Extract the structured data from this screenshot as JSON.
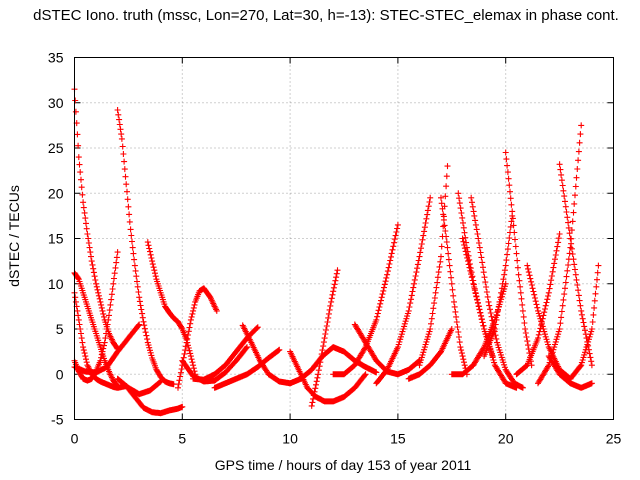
{
  "chart_data": {
    "type": "scatter",
    "title": "dSTEC Iono. truth (mssc, Lon=270, Lat=30, h=-13): STEC-STEC_elemax in phase cont.",
    "xlabel": "GPS time / hours of day 153 of year 2011",
    "ylabel": "dSTEC  / TECUs",
    "xlim": [
      0,
      25
    ],
    "ylim": [
      -5,
      35
    ],
    "xticks": [
      0,
      5,
      10,
      15,
      20,
      25
    ],
    "yticks": [
      -5,
      0,
      5,
      10,
      15,
      20,
      25,
      30,
      35
    ],
    "grid": true,
    "marker": "+",
    "color": "#ff0000",
    "series": [
      {
        "x": [
          0.0,
          0.2,
          0.4,
          0.6,
          0.8,
          1.0,
          1.2,
          1.4,
          1.6,
          1.8,
          2.0
        ],
        "y": [
          31.5,
          24,
          19,
          15.5,
          12.5,
          10,
          8,
          6,
          4.5,
          3.5,
          2.8
        ]
      },
      {
        "x": [
          0.0,
          0.2,
          0.4,
          0.6,
          0.8,
          1.0,
          1.2,
          1.4,
          1.6,
          1.8,
          2.0
        ],
        "y": [
          11.2,
          10.5,
          9,
          7.5,
          6,
          4.5,
          3,
          1.5,
          0.3,
          -0.7,
          -1.3
        ]
      },
      {
        "x": [
          0.0,
          0.2,
          0.4,
          0.6,
          0.8,
          1.0,
          1.2,
          1.4,
          1.6,
          1.8,
          2.0,
          2.2,
          2.4
        ],
        "y": [
          9,
          6,
          3,
          1,
          0,
          -0.5,
          -0.8,
          -1,
          -1.2,
          -1.4,
          -1.5,
          -1.4,
          -1.3
        ]
      },
      {
        "x": [
          0.0,
          0.2,
          0.4,
          0.6,
          0.8,
          1.0,
          1.2,
          1.4,
          1.6,
          1.8,
          2.0
        ],
        "y": [
          1.5,
          0.3,
          -0.5,
          -0.7,
          -0.5,
          0.3,
          1.5,
          3.5,
          6.5,
          10,
          13.5
        ]
      },
      {
        "x": [
          0.0,
          0.5,
          1.0,
          1.5,
          2.0,
          2.5,
          3.0
        ],
        "y": [
          0.8,
          0.3,
          0.2,
          0.8,
          2.5,
          4,
          5.5
        ]
      },
      {
        "x": [
          2.0,
          2.2,
          2.4,
          2.6,
          2.8,
          3.0,
          3.2,
          3.4,
          3.6,
          3.8,
          4.0,
          4.2,
          4.4,
          4.6
        ],
        "y": [
          29.2,
          26,
          21,
          16,
          12,
          8.5,
          5.8,
          3.5,
          1.8,
          0.5,
          -0.3,
          -0.8,
          -1,
          -1.1
        ]
      },
      {
        "x": [
          2.0,
          2.5,
          3.0,
          3.5,
          4.0
        ],
        "y": [
          -0.5,
          -1.5,
          -2.2,
          -1.8,
          -0.8
        ]
      },
      {
        "x": [
          2.4,
          2.8,
          3.2,
          3.6,
          4.0,
          4.4,
          4.8,
          5.0
        ],
        "y": [
          -1.3,
          -2.5,
          -3.7,
          -4.2,
          -4.3,
          -4.0,
          -3.8,
          -3.6
        ]
      },
      {
        "x": [
          3.4,
          3.6,
          3.8,
          4.0,
          4.2,
          4.4,
          4.6,
          4.8,
          5.0,
          5.2,
          5.4,
          5.6
        ],
        "y": [
          14.6,
          12.5,
          10.5,
          9,
          7.5,
          6.8,
          6.2,
          5.8,
          5,
          3.8,
          2,
          0
        ]
      },
      {
        "x": [
          4.8,
          5.0,
          5.2,
          5.4,
          5.6,
          5.8,
          6.0,
          6.3,
          6.6
        ],
        "y": [
          -1.5,
          1,
          3.5,
          6,
          8,
          9.2,
          9.5,
          8.5,
          7
        ]
      },
      {
        "x": [
          5.0,
          5.5,
          6.0,
          6.5,
          7.0,
          7.5,
          8.0
        ],
        "y": [
          1.5,
          -0.2,
          -0.8,
          -0.7,
          0.2,
          1.5,
          3
        ]
      },
      {
        "x": [
          5.5,
          6.0,
          6.5,
          7.0,
          7.5,
          8.0,
          8.5
        ],
        "y": [
          -0.5,
          -0.6,
          0,
          1,
          2.5,
          4,
          5.2
        ]
      },
      {
        "x": [
          6.5,
          7.0,
          7.5,
          8.0,
          8.5,
          9.0,
          9.5
        ],
        "y": [
          -1.5,
          -1,
          -0.5,
          0,
          0.8,
          1.8,
          2.7
        ]
      },
      {
        "x": [
          7.8,
          8.2,
          8.6,
          9.0,
          9.5,
          10.0
        ],
        "y": [
          5.4,
          3.5,
          1.5,
          0,
          -0.8,
          -1
        ]
      },
      {
        "x": [
          10.0,
          10.4,
          10.8,
          11.2,
          11.6,
          12.0,
          12.5,
          13.0,
          13.5
        ],
        "y": [
          2.5,
          0.5,
          -1.5,
          -2.5,
          -3,
          -3,
          -2.5,
          -1.5,
          0
        ]
      },
      {
        "x": [
          10.0,
          10.5,
          11.0,
          11.5,
          12.0,
          12.5,
          13.0,
          13.5,
          14.0
        ],
        "y": [
          -1,
          -0.5,
          0.5,
          2,
          3,
          2.5,
          1.5,
          0.8,
          0.2
        ]
      },
      {
        "x": [
          11.0,
          11.3,
          11.6,
          11.9,
          12.2
        ],
        "y": [
          -3.5,
          0,
          4,
          8,
          11.5
        ]
      },
      {
        "x": [
          12.0,
          12.5,
          13.0,
          13.5,
          14.0,
          14.5,
          15.0
        ],
        "y": [
          0,
          0,
          1,
          3,
          6,
          11,
          16.5
        ]
      },
      {
        "x": [
          13.0,
          13.5,
          14.0,
          14.5,
          15.0,
          15.5,
          16.0
        ],
        "y": [
          5.5,
          3.5,
          1.5,
          0.3,
          0,
          0.5,
          1.5
        ]
      },
      {
        "x": [
          14.0,
          14.5,
          15.0,
          15.5,
          16.0,
          16.5
        ],
        "y": [
          -1,
          0.5,
          3,
          7,
          13,
          19.5
        ]
      },
      {
        "x": [
          15.5,
          16.0,
          16.5,
          17.0,
          17.5
        ],
        "y": [
          -0.5,
          0,
          1,
          2.5,
          5
        ]
      },
      {
        "x": [
          16.0,
          16.5,
          17.0,
          17.3
        ],
        "y": [
          1,
          5,
          13,
          23
        ]
      },
      {
        "x": [
          17.0,
          17.3,
          17.6,
          17.9,
          18.2
        ],
        "y": [
          19.5,
          14,
          8,
          3,
          0
        ]
      },
      {
        "x": [
          17.5,
          18.0,
          18.5,
          19.0,
          19.5,
          20.0
        ],
        "y": [
          0,
          0,
          1,
          3,
          6,
          10
        ]
      },
      {
        "x": [
          18.0,
          18.5,
          19.0,
          19.5,
          20.0,
          20.5
        ],
        "y": [
          15,
          10,
          5,
          1,
          -1,
          -1.5
        ]
      },
      {
        "x": [
          17.8,
          18.2,
          18.6,
          19.0,
          19.4
        ],
        "y": [
          20,
          14,
          9,
          5,
          2
        ]
      },
      {
        "x": [
          18.4,
          18.8,
          19.2,
          19.6,
          20.0,
          20.4,
          20.8
        ],
        "y": [
          19.5,
          14,
          8,
          3.5,
          0.5,
          -1,
          -1.5
        ]
      },
      {
        "x": [
          19.0,
          19.5,
          20.0,
          20.3
        ],
        "y": [
          2,
          5,
          12,
          17.5
        ]
      },
      {
        "x": [
          20.0,
          20.3,
          20.6,
          20.9,
          21.2
        ],
        "y": [
          24.5,
          18,
          11,
          5,
          1
        ]
      },
      {
        "x": [
          20.5,
          21.0,
          21.5,
          22.0,
          22.5
        ],
        "y": [
          0,
          1,
          4,
          9,
          15.5
        ]
      },
      {
        "x": [
          21.0,
          21.5,
          22.0,
          22.5,
          23.0
        ],
        "y": [
          12,
          7,
          3,
          0.5,
          -0.5
        ]
      },
      {
        "x": [
          21.5,
          22.0,
          22.5,
          23.0,
          23.5
        ],
        "y": [
          -1,
          1,
          5,
          14,
          27.5
        ]
      },
      {
        "x": [
          22.5,
          23.0,
          23.5,
          24.0
        ],
        "y": [
          23.2,
          15,
          7,
          1
        ]
      },
      {
        "x": [
          23.0,
          23.5,
          24.0,
          24.3
        ],
        "y": [
          -0.5,
          1,
          5,
          12
        ]
      },
      {
        "x": [
          22.0,
          22.5,
          23.0,
          23.5,
          24.0
        ],
        "y": [
          2,
          0,
          -1,
          -1.5,
          -1
        ]
      }
    ]
  }
}
